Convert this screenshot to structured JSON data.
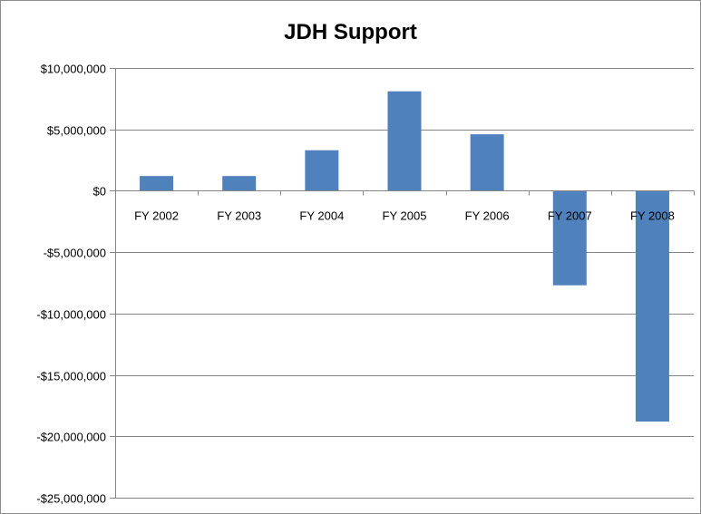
{
  "chart_data": {
    "type": "bar",
    "title": "JDH Support",
    "xlabel": "",
    "ylabel": "",
    "categories": [
      "FY 2002",
      "FY 2003",
      "FY 2004",
      "FY 2005",
      "FY 2006",
      "FY 2007",
      "FY 2008"
    ],
    "values": [
      1200000,
      1200000,
      3300000,
      8100000,
      4600000,
      -7700000,
      -18800000
    ],
    "ylim": [
      -25000000,
      10000000
    ],
    "yticks": [
      10000000,
      5000000,
      0,
      -5000000,
      -10000000,
      -15000000,
      -20000000,
      -25000000
    ],
    "ytick_labels": [
      "$10,000,000",
      "$5,000,000",
      "$0",
      "-$5,000,000",
      "-$10,000,000",
      "-$15,000,000",
      "-$20,000,000",
      "-$25,000,000"
    ],
    "grid": true,
    "legend": "none",
    "colors": {
      "bar": "#4f81bd",
      "grid": "#868686",
      "axis": "#868686"
    }
  }
}
